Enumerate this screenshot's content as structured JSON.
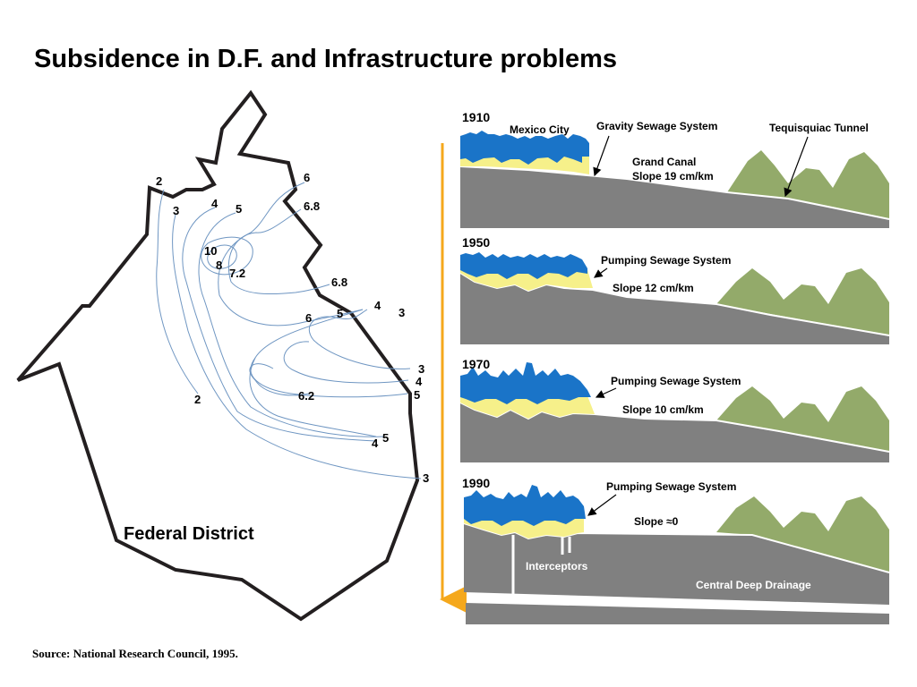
{
  "title": "Subsidence in D.F. and Infrastructure problems",
  "source": "Source: National Research Council, 1995.",
  "map": {
    "region_label": "Federal District",
    "contour_labels": [
      "2",
      "3",
      "4",
      "5",
      "6",
      "6.8",
      "10",
      "8",
      "7.2",
      "6.8",
      "6",
      "5",
      "4",
      "3",
      "3",
      "4",
      "5",
      "6.2",
      "2",
      "5",
      "4",
      "3"
    ]
  },
  "colors": {
    "ground": "#808080",
    "mountains": "#93aa6a",
    "city_blue": "#1a74c8",
    "city_yellow": "#f6f08a",
    "arrow": "#f5a81c",
    "contours": "#6f96c2"
  },
  "panels": [
    {
      "year": "1910",
      "labels": {
        "city": "Mexico City",
        "sewage": "Gravity Sewage System",
        "tunnel": "Tequisquiac Tunnel",
        "canal": "Grand Canal",
        "slope": "Slope 19 cm/km"
      }
    },
    {
      "year": "1950",
      "labels": {
        "sewage": "Pumping Sewage System",
        "slope": "Slope 12 cm/km"
      }
    },
    {
      "year": "1970",
      "labels": {
        "sewage": "Pumping Sewage System",
        "slope": "Slope 10 cm/km"
      }
    },
    {
      "year": "1990",
      "labels": {
        "sewage": "Pumping Sewage System",
        "slope": "Slope ≈0",
        "interceptors": "Interceptors",
        "deep": "Central Deep Drainage"
      }
    }
  ]
}
